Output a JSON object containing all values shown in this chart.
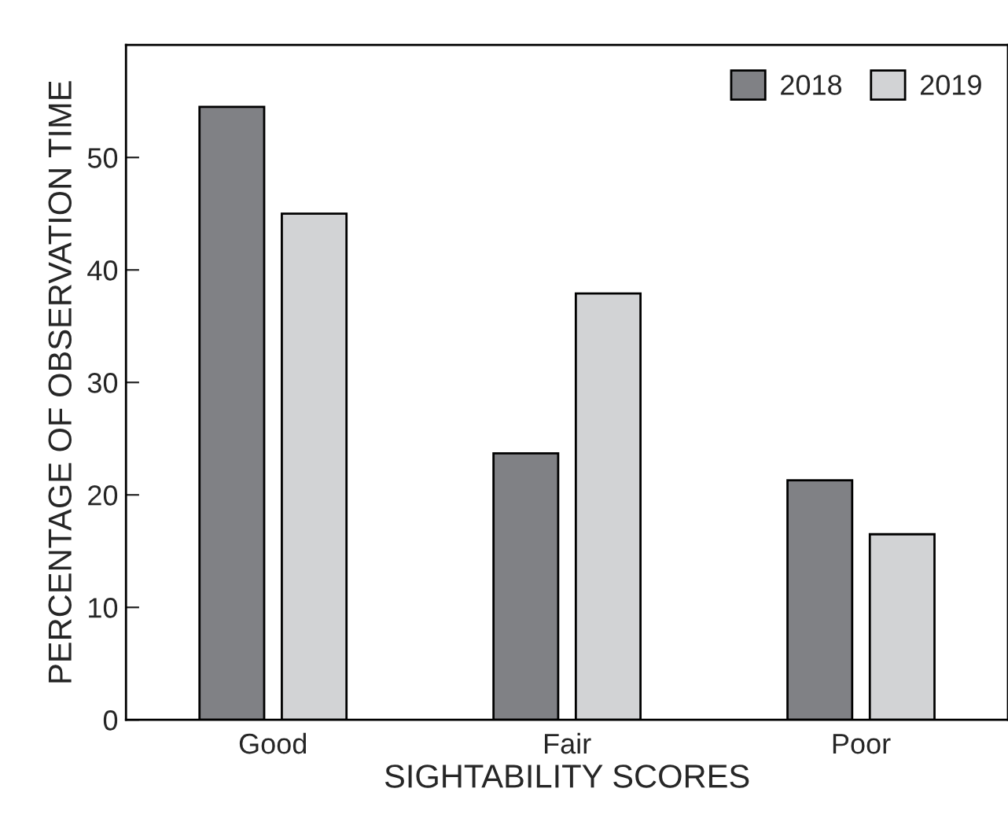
{
  "chart_data": {
    "type": "bar",
    "xlabel": "SIGHTABILITY SCORES",
    "ylabel": "PERCENTAGE OF OBSERVATION TIME",
    "categories": [
      "Good",
      "Fair",
      "Poor"
    ],
    "series": [
      {
        "name": "2018",
        "color": "#808185",
        "values": [
          54.5,
          23.7,
          21.3
        ]
      },
      {
        "name": "2019",
        "color": "#d2d3d5",
        "values": [
          45.0,
          37.9,
          16.5
        ]
      }
    ],
    "ylim": [
      0,
      60
    ],
    "yticks": [
      0,
      10,
      20,
      30,
      40,
      50
    ],
    "grid": false,
    "legend": "top right"
  }
}
